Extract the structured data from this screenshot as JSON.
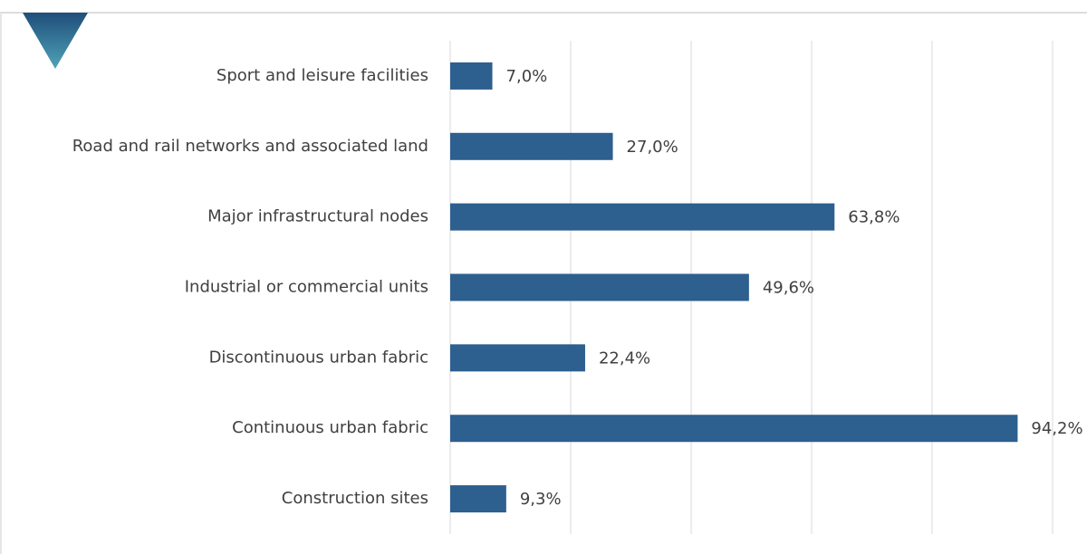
{
  "chart_data": {
    "type": "bar",
    "orientation": "horizontal",
    "categories": [
      "Sport and leisure facilities",
      "Road and rail networks and associated land",
      "Major infrastructural nodes",
      "Industrial or commercial units",
      "Discontinuous urban fabric",
      "Continuous urban fabric",
      "Construction sites"
    ],
    "values": [
      7.0,
      27.0,
      63.8,
      49.6,
      22.4,
      94.2,
      9.3
    ],
    "value_labels": [
      "7,0%",
      "27,0%",
      "63,8%",
      "49,6%",
      "22,4%",
      "94,2%",
      "9,3%"
    ],
    "color": "#2d5f8f",
    "xlim": [
      0,
      100
    ],
    "xticks": [
      0,
      20,
      40,
      60,
      80,
      100
    ],
    "grid": true
  }
}
